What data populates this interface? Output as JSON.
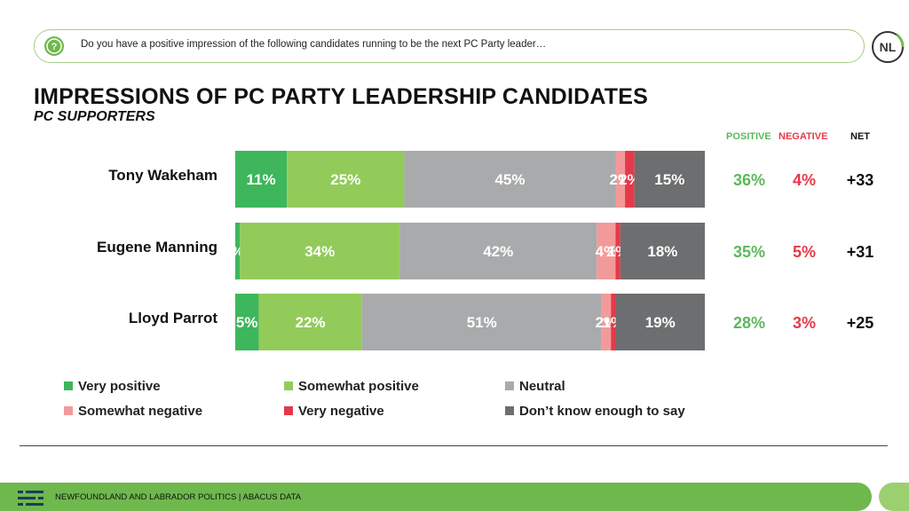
{
  "question": "Do you have a positive impression of the following candidates running to be the next PC Party leader…",
  "logo_text": "NL",
  "title": "IMPRESSIONS OF PC PARTY LEADERSHIP CANDIDATES",
  "subtitle": "PC SUPPORTERS",
  "headers": {
    "positive": "POSITIVE",
    "negative": "NEGATIVE",
    "net": "NET"
  },
  "colors": {
    "very_positive": "#3db65c",
    "somewhat_positive": "#92cb5a",
    "neutral": "#a9aaab",
    "somewhat_negative": "#f29a9a",
    "very_negative": "#e5394a",
    "dont_know": "#6d6e6f",
    "positive_text": "#5cb85c",
    "negative_text": "#e5394a"
  },
  "chart_data": {
    "type": "bar",
    "orientation": "horizontal",
    "stacked": true,
    "categories": [
      "Tony Wakeham",
      "Eugene Manning",
      "Lloyd Parrot"
    ],
    "series": [
      {
        "name": "Very positive",
        "color_key": "very_positive",
        "values": [
          11,
          1,
          5
        ],
        "labels": [
          "11%",
          "%",
          "5%"
        ]
      },
      {
        "name": "Somewhat positive",
        "color_key": "somewhat_positive",
        "values": [
          25,
          34,
          22
        ],
        "labels": [
          "25%",
          "34%",
          "22%"
        ]
      },
      {
        "name": "Neutral",
        "color_key": "neutral",
        "values": [
          45,
          42,
          51
        ],
        "labels": [
          "45%",
          "42%",
          "51%"
        ]
      },
      {
        "name": "Somewhat negative",
        "color_key": "somewhat_negative",
        "values": [
          2,
          4,
          2
        ],
        "labels": [
          "2%",
          "4%",
          "2%"
        ]
      },
      {
        "name": "Very negative",
        "color_key": "very_negative",
        "values": [
          2,
          1,
          1
        ],
        "labels": [
          "2%",
          "1%",
          "1%"
        ]
      },
      {
        "name": "Don’t know enough to say",
        "color_key": "dont_know",
        "values": [
          15,
          18,
          19
        ],
        "labels": [
          "15%",
          "18%",
          "19%"
        ]
      }
    ],
    "summary": [
      {
        "positive": "36%",
        "negative": "4%",
        "net": "+33"
      },
      {
        "positive": "35%",
        "negative": "5%",
        "net": "+31"
      },
      {
        "positive": "28%",
        "negative": "3%",
        "net": "+25"
      }
    ],
    "legend_position": "bottom"
  },
  "footer": {
    "text": "NEWFOUNDLAND AND LABRADOR POLITICS  |  ABACUS DATA"
  }
}
